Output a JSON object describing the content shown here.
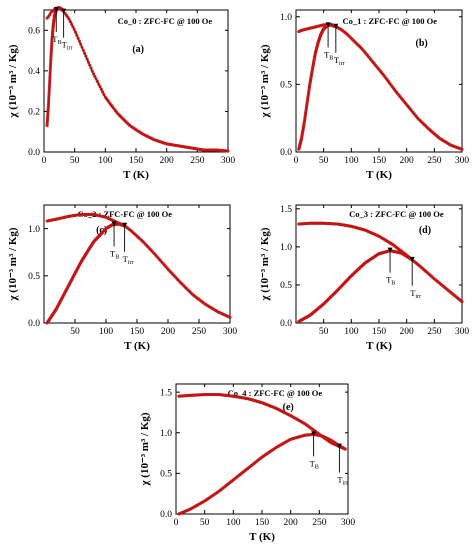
{
  "chart_data": [
    {
      "type": "line",
      "title": "Co_0 : ZFC-FC @ 100 Oe",
      "panel_label": "(a)",
      "xlabel": "T (K)",
      "ylabel": "χ (10⁻³ m³ / Kg)",
      "xlim": [
        0,
        300
      ],
      "ylim": [
        0,
        0.7
      ],
      "xticks": [
        0,
        50,
        100,
        150,
        200,
        250,
        300
      ],
      "yticks": [
        0.0,
        0.2,
        0.4,
        0.6
      ],
      "grid": false,
      "markers": {
        "TB": 20,
        "Tirr": 32
      },
      "series": [
        {
          "role": "FC",
          "x": [
            5,
            8,
            12,
            16,
            20,
            25,
            30,
            40,
            50,
            60,
            70,
            80,
            90,
            100,
            120,
            140,
            160,
            180,
            200,
            220,
            240,
            260,
            280,
            300
          ],
          "values": [
            0.66,
            0.67,
            0.69,
            0.7,
            0.71,
            0.71,
            0.7,
            0.66,
            0.6,
            0.53,
            0.46,
            0.39,
            0.33,
            0.27,
            0.19,
            0.13,
            0.09,
            0.06,
            0.04,
            0.03,
            0.02,
            0.01,
            0.01,
            0.005
          ]
        },
        {
          "role": "ZFC",
          "x": [
            5,
            7,
            9,
            11,
            13,
            15,
            17,
            20,
            23,
            26,
            30
          ],
          "values": [
            0.13,
            0.22,
            0.33,
            0.45,
            0.55,
            0.62,
            0.67,
            0.7,
            0.71,
            0.71,
            0.7
          ]
        }
      ]
    },
    {
      "type": "line",
      "title": "Co_1 : ZFC-FC @ 100 Oe",
      "panel_label": "(b)",
      "xlabel": "T (K)",
      "ylabel": "χ (10⁻³ m³ / Kg)",
      "xlim": [
        0,
        300
      ],
      "ylim": [
        0,
        1.05
      ],
      "xticks": [
        0,
        50,
        100,
        150,
        200,
        250,
        300
      ],
      "yticks": [
        0.0,
        0.5,
        1.0
      ],
      "grid": false,
      "markers": {
        "TB": 58,
        "Tirr": 72
      },
      "series": [
        {
          "role": "FC",
          "x": [
            5,
            10,
            20,
            30,
            40,
            50,
            60,
            70,
            80,
            90,
            100,
            120,
            140,
            160,
            180,
            200,
            220,
            240,
            260,
            280,
            300
          ],
          "values": [
            0.89,
            0.9,
            0.91,
            0.92,
            0.93,
            0.94,
            0.94,
            0.93,
            0.91,
            0.88,
            0.84,
            0.76,
            0.66,
            0.56,
            0.45,
            0.35,
            0.25,
            0.17,
            0.1,
            0.05,
            0.02
          ]
        },
        {
          "role": "ZFC",
          "x": [
            5,
            10,
            15,
            20,
            25,
            30,
            35,
            40,
            45,
            50,
            55,
            60,
            65,
            70
          ],
          "values": [
            0.02,
            0.1,
            0.22,
            0.36,
            0.5,
            0.62,
            0.73,
            0.81,
            0.87,
            0.91,
            0.93,
            0.94,
            0.94,
            0.93
          ]
        }
      ]
    },
    {
      "type": "line",
      "title": "Co_2 : ZFC-FC @ 100 Oe",
      "panel_label": "(c)",
      "xlabel": "T (K)",
      "ylabel": "χ (10⁻³ m³ / Kg)",
      "xlim": [
        0,
        300
      ],
      "ylim": [
        0,
        1.25
      ],
      "xticks": [
        50,
        100,
        150,
        200,
        250,
        300
      ],
      "yticks": [
        0.0,
        0.5,
        1.0
      ],
      "grid": false,
      "markers": {
        "TB": 113,
        "Tirr": 130
      },
      "series": [
        {
          "role": "FC",
          "x": [
            5,
            20,
            40,
            60,
            80,
            100,
            120,
            130,
            140,
            160,
            180,
            200,
            220,
            240,
            260,
            280,
            300
          ],
          "values": [
            1.08,
            1.1,
            1.13,
            1.15,
            1.15,
            1.12,
            1.06,
            1.03,
            0.98,
            0.86,
            0.72,
            0.57,
            0.43,
            0.3,
            0.2,
            0.12,
            0.06
          ]
        },
        {
          "role": "ZFC",
          "x": [
            5,
            20,
            40,
            60,
            80,
            100,
            110,
            120,
            130
          ],
          "values": [
            0.0,
            0.15,
            0.4,
            0.65,
            0.86,
            1.0,
            1.04,
            1.05,
            1.03
          ]
        }
      ]
    },
    {
      "type": "line",
      "title": "Co_3 : ZFC-FC @ 100 Oe",
      "panel_label": "(d)",
      "xlabel": "T (K)",
      "ylabel": "χ (10⁻³ m³ / Kg)",
      "xlim": [
        0,
        300
      ],
      "ylim": [
        0,
        1.55
      ],
      "xticks": [
        50,
        100,
        150,
        200,
        250,
        300
      ],
      "yticks": [
        0.0,
        0.5,
        1.0,
        1.5
      ],
      "grid": false,
      "markers": {
        "TB": 170,
        "Tirr": 210
      },
      "series": [
        {
          "role": "FC",
          "x": [
            5,
            25,
            50,
            75,
            100,
            125,
            150,
            175,
            200,
            210,
            225,
            250,
            275,
            300
          ],
          "values": [
            1.3,
            1.31,
            1.31,
            1.3,
            1.27,
            1.22,
            1.14,
            1.03,
            0.89,
            0.83,
            0.74,
            0.58,
            0.43,
            0.28
          ]
        },
        {
          "role": "ZFC",
          "x": [
            5,
            25,
            50,
            75,
            100,
            125,
            150,
            170,
            190,
            210
          ],
          "values": [
            0.02,
            0.1,
            0.25,
            0.43,
            0.62,
            0.79,
            0.91,
            0.95,
            0.92,
            0.83
          ]
        }
      ]
    },
    {
      "type": "line",
      "title": "Co_4 : ZFC-FC @ 100 Oe",
      "panel_label": "(e)",
      "xlabel": "T (K)",
      "ylabel": "χ (10⁻³ m³ / Kg)",
      "xlim": [
        0,
        300
      ],
      "ylim": [
        0,
        1.6
      ],
      "xticks": [
        0,
        50,
        100,
        150,
        200,
        250,
        300
      ],
      "yticks": [
        0.0,
        0.5,
        1.0,
        1.5
      ],
      "grid": false,
      "markers": {
        "TB": 240,
        "Tirr": 285
      },
      "series": [
        {
          "role": "FC",
          "x": [
            5,
            25,
            50,
            75,
            100,
            125,
            150,
            175,
            200,
            225,
            250,
            270,
            285,
            295
          ],
          "values": [
            1.45,
            1.46,
            1.47,
            1.47,
            1.45,
            1.42,
            1.37,
            1.3,
            1.21,
            1.11,
            0.98,
            0.88,
            0.83,
            0.8
          ]
        },
        {
          "role": "ZFC",
          "x": [
            5,
            25,
            50,
            75,
            100,
            125,
            150,
            175,
            200,
            225,
            240,
            255,
            270,
            285,
            295
          ],
          "values": [
            0.0,
            0.06,
            0.16,
            0.28,
            0.42,
            0.56,
            0.7,
            0.82,
            0.92,
            0.97,
            0.98,
            0.96,
            0.91,
            0.84,
            0.8
          ]
        }
      ]
    }
  ]
}
